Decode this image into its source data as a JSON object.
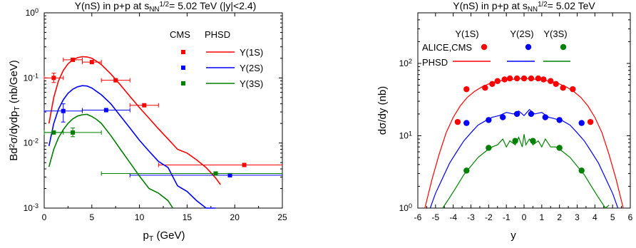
{
  "chart_data": [
    {
      "type": "scatter",
      "title": "Υ(nS) in p+p at s_NN^1/2 = 5.02 TeV (|y|<2.4)",
      "title_parts": {
        "main": "Υ(nS) in p+p at s",
        "sub": "NN",
        "sup": "1/2",
        "rest": "= 5.02 TeV (|y|<2.4)"
      },
      "xlabel": "p_T (GeV)",
      "xlabel_parts": {
        "main": "p",
        "sub": "T",
        "rest": " (GeV)"
      },
      "ylabel": "Bd²σ/dydp_T (nb/GeV)",
      "ylabel_parts": {
        "main": "Bd",
        "sup": "2",
        "mid": "σ/dydp",
        "sub": "T",
        "rest": " (nb/GeV)"
      },
      "xlim": [
        0,
        25
      ],
      "ylim": [
        0.001,
        1
      ],
      "yscale": "log",
      "xticks": [
        0,
        5,
        10,
        15,
        20,
        25
      ],
      "yticks": [
        {
          "v": 1,
          "m": "10",
          "e": "0"
        },
        {
          "v": 0.1,
          "m": "10",
          "e": "-1"
        },
        {
          "v": 0.01,
          "m": "10",
          "e": "-2"
        },
        {
          "v": 0.001,
          "m": "10",
          "e": "-3"
        }
      ],
      "legend": {
        "position": "top-right",
        "col_data": "CMS",
        "col_model": "PHSD"
      },
      "colors": {
        "1S": "#ff0000",
        "2S": "#0000ff",
        "3S": "#008000"
      },
      "series": [
        {
          "name": "Υ(1S)",
          "key": "1S",
          "data_points": [
            {
              "x": 1.0,
              "xerr": [
                0.0,
                2.0
              ],
              "y": 0.1,
              "yerr": [
                0.085,
                0.118
              ]
            },
            {
              "x": 3.0,
              "xerr": [
                2.0,
                4.0
              ],
              "y": 0.19
            },
            {
              "x": 5.0,
              "xerr": [
                4.0,
                6.0
              ],
              "y": 0.175
            },
            {
              "x": 7.5,
              "xerr": [
                6.0,
                9.0
              ],
              "y": 0.092
            },
            {
              "x": 10.5,
              "xerr": [
                9.0,
                12.0
              ],
              "y": 0.038
            },
            {
              "x": 21.0,
              "xerr": [
                12.0,
                30.0
              ],
              "y": 0.0046
            }
          ],
          "model_curve": {
            "x": [
              0.5,
              1.0,
              1.5,
              2.0,
              2.5,
              3.0,
              3.5,
              4.0,
              4.5,
              5.0,
              5.5,
              6.0,
              7.0,
              8.0,
              9.0,
              10.0,
              11.0,
              12.0,
              13.0,
              14.0,
              15.0,
              16.0,
              17.0,
              18.0,
              18.5
            ],
            "y": [
              0.02,
              0.05,
              0.09,
              0.13,
              0.165,
              0.19,
              0.205,
              0.212,
              0.21,
              0.2,
              0.18,
              0.16,
              0.115,
              0.078,
              0.052,
              0.035,
              0.024,
              0.0165,
              0.0115,
              0.008,
              0.007,
              0.0055,
              0.0042,
              0.0029,
              0.0023
            ]
          }
        },
        {
          "name": "Υ(2S)",
          "key": "2S",
          "data_points": [
            {
              "x": 2.0,
              "xerr": [
                0.0,
                4.0
              ],
              "y": 0.031,
              "yerr": [
                0.021,
                0.04
              ]
            },
            {
              "x": 6.5,
              "xerr": [
                4.0,
                9.0
              ],
              "y": 0.032
            },
            {
              "x": 19.5,
              "xerr": [
                9.0,
                30.0
              ],
              "y": 0.0032
            }
          ],
          "model_curve": {
            "x": [
              0.5,
              1.0,
              1.5,
              2.0,
              2.5,
              3.0,
              3.5,
              4.0,
              4.5,
              5.0,
              5.5,
              6.0,
              7.0,
              8.0,
              9.0,
              10.0,
              11.0,
              12.0,
              13.0,
              14.0,
              15.0,
              16.0,
              17.0,
              18.0
            ],
            "y": [
              0.009,
              0.02,
              0.033,
              0.046,
              0.058,
              0.067,
              0.073,
              0.076,
              0.075,
              0.07,
              0.062,
              0.055,
              0.04,
              0.026,
              0.017,
              0.011,
              0.0075,
              0.0052,
              0.0042,
              0.0022,
              0.0018,
              0.0013,
              0.001,
              0.001
            ]
          }
        },
        {
          "name": "Υ(3S)",
          "key": "3S",
          "data_points": [
            {
              "x": 1.0,
              "xerr": [
                0.0,
                2.0
              ],
              "y": 0.0145
            },
            {
              "x": 3.0,
              "xerr": [
                0.0,
                6.0
              ],
              "y": 0.0145,
              "yerr": [
                0.0125,
                0.017
              ]
            },
            {
              "x": 18.0,
              "xerr": [
                6.0,
                30.0
              ],
              "y": 0.0034
            }
          ],
          "model_curve": {
            "x": [
              0.5,
              1.0,
              1.5,
              2.0,
              2.5,
              3.0,
              3.5,
              4.0,
              4.5,
              5.0,
              5.5,
              6.0,
              7.0,
              8.0,
              9.0,
              10.0,
              11.0,
              12.0,
              13.0,
              13.5
            ],
            "y": [
              0.0043,
              0.008,
              0.012,
              0.016,
              0.02,
              0.0235,
              0.026,
              0.0272,
              0.0275,
              0.0255,
              0.023,
              0.02,
              0.013,
              0.008,
              0.005,
              0.0031,
              0.002,
              0.0017,
              0.0013,
              0.001
            ]
          }
        }
      ]
    },
    {
      "type": "scatter",
      "title": "Υ(nS) in p+p at s_NN^1/2 = 5.02 TeV",
      "title_parts": {
        "main": "Υ(nS) in p+p at s",
        "sub": "NN",
        "sup": "1/2",
        "rest": "= 5.02 TeV"
      },
      "xlabel": "y",
      "ylabel": "dσ/dy (nb)",
      "xlim": [
        -6,
        6
      ],
      "ylim": [
        1,
        500
      ],
      "yscale": "log",
      "xticks": [
        -6,
        -5,
        -4,
        -3,
        -2,
        -1,
        0,
        1,
        2,
        3,
        4,
        5,
        6
      ],
      "yticks": [
        {
          "v": 1,
          "m": "10",
          "e": "0"
        },
        {
          "v": 10,
          "m": "10",
          "e": "1"
        },
        {
          "v": 100,
          "m": "10",
          "e": "2"
        }
      ],
      "legend": {
        "position": "top-left",
        "headers": [
          "Υ(1S)",
          "Υ(2S)",
          "Υ(3S)"
        ],
        "row_data": "ALICE,CMS",
        "row_model": "PHSD"
      },
      "colors": {
        "1S": "#ff0000",
        "2S": "#0000ff",
        "3S": "#008000"
      },
      "series": [
        {
          "name": "Υ(1S)",
          "key": "1S",
          "data_points": {
            "x": [
              -3.75,
              -3.25,
              -2.2,
              -1.8,
              -1.5,
              -1.1,
              -0.8,
              -0.4,
              0.0,
              0.4,
              0.8,
              1.1,
              1.5,
              1.8,
              2.2,
              2.75,
              3.75
            ],
            "y": [
              15.5,
              44,
              46,
              52,
              57,
              60,
              62,
              62,
              62,
              62,
              62,
              60,
              57,
              52,
              46,
              44,
              15.5
            ]
          },
          "model_curve": {
            "x": [
              -5.6,
              -5.2,
              -4.8,
              -4.4,
              -4.0,
              -3.6,
              -3.2,
              -2.8,
              -2.4,
              -2.0,
              -1.6,
              -1.2,
              -0.8,
              -0.4,
              0.0,
              0.4,
              0.8,
              1.2,
              1.6,
              2.0,
              2.4,
              2.8,
              3.2,
              3.6,
              4.0,
              4.4,
              4.8,
              5.2,
              5.6
            ],
            "y": [
              1.0,
              2.5,
              5.5,
              11,
              18,
              26,
              34,
              41,
              47,
              52,
              56,
              58,
              60,
              61,
              62,
              61,
              60,
              58,
              56,
              52,
              47,
              41,
              34,
              26,
              18,
              11,
              5.5,
              2.5,
              1.0
            ]
          }
        },
        {
          "name": "Υ(2S)",
          "key": "2S",
          "data_points": {
            "x": [
              -3.25,
              -2.0,
              -1.2,
              -0.4,
              0.4,
              1.2,
              2.0,
              3.25
            ],
            "y": [
              15,
              16.5,
              18,
              20,
              20,
              18,
              16.5,
              15
            ]
          },
          "model_curve": {
            "x": [
              -5.3,
              -5.0,
              -4.6,
              -4.2,
              -3.8,
              -3.4,
              -3.0,
              -2.6,
              -2.2,
              -1.8,
              -1.4,
              -1.0,
              -0.6,
              -0.3,
              0.0,
              0.3,
              0.6,
              1.0,
              1.4,
              1.8,
              2.2,
              2.6,
              3.0,
              3.4,
              3.8,
              4.2,
              4.6,
              5.0,
              5.3
            ],
            "y": [
              1.0,
              1.6,
              2.6,
              4.2,
              6.0,
              8.5,
              11,
              14,
              16,
              18,
              19,
              21,
              20,
              22,
              19,
              23,
              20,
              21,
              18,
              17,
              16,
              14,
              11,
              8.5,
              6.0,
              4.2,
              2.6,
              1.6,
              1.0
            ]
          }
        },
        {
          "name": "Υ(3S)",
          "key": "3S",
          "data_points": {
            "x": [
              -3.25,
              -2.0,
              -0.5,
              0.5,
              2.0,
              3.25
            ],
            "y": [
              3.3,
              6.8,
              8.5,
              8.5,
              6.8,
              3.3
            ]
          },
          "model_curve": {
            "x": [
              -4.6,
              -4.2,
              -3.8,
              -3.4,
              -3.0,
              -2.6,
              -2.2,
              -1.8,
              -1.5,
              -1.2,
              -1.0,
              -0.8,
              -0.5,
              -0.3,
              -0.1,
              0.0,
              0.1,
              0.3,
              0.5,
              0.8,
              1.0,
              1.2,
              1.5,
              1.8,
              2.2,
              2.6,
              3.0,
              3.4,
              3.8,
              4.2,
              4.6,
              4.8
            ],
            "y": [
              1.0,
              1.4,
              2.0,
              2.9,
              3.8,
              5.0,
              6.0,
              7.0,
              7.5,
              9.0,
              7.0,
              8.5,
              7.5,
              9.5,
              7.0,
              10.5,
              7.5,
              9.0,
              7.5,
              8.5,
              7.0,
              9.0,
              7.0,
              7.0,
              6.0,
              5.0,
              3.8,
              2.9,
              2.0,
              1.4,
              1.0,
              1.1
            ]
          }
        }
      ]
    }
  ]
}
